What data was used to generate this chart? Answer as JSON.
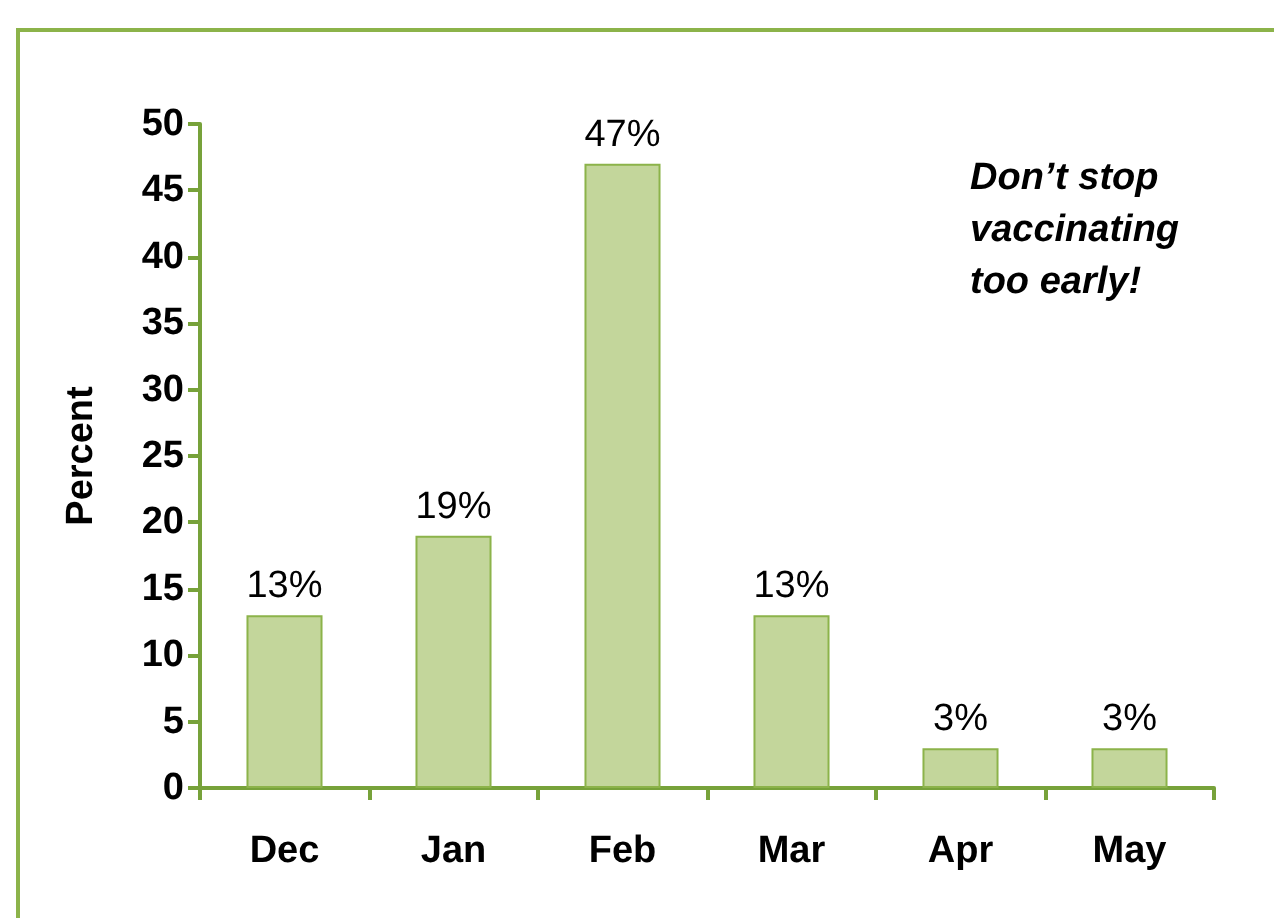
{
  "chart_data": {
    "type": "bar",
    "ylabel": "Percent",
    "categories": [
      "Dec",
      "Jan",
      "Feb",
      "Mar",
      "Apr",
      "May"
    ],
    "values": [
      13,
      19,
      47,
      13,
      3,
      3
    ],
    "value_labels": [
      "13%",
      "19%",
      "47%",
      "13%",
      "3%",
      "3%"
    ],
    "color": "#c3d69b",
    "ylim": [
      0,
      50
    ],
    "yticks": [
      0,
      5,
      10,
      15,
      20,
      25,
      30,
      35,
      40,
      45,
      50
    ],
    "grid": false,
    "annotations": [
      "Don’t stop vaccinating too early!"
    ]
  }
}
